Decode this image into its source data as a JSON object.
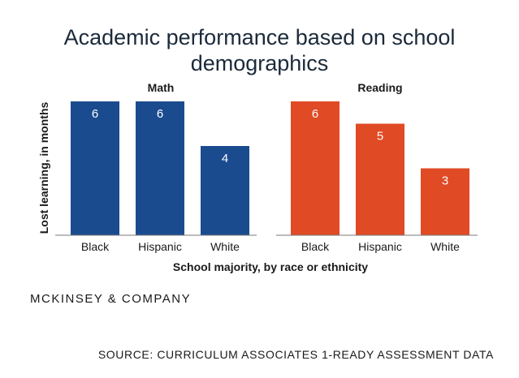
{
  "title_lines": [
    "Academic performance based on school",
    "demographics"
  ],
  "chart_data": {
    "type": "bar",
    "title": "Academic performance based on school demographics",
    "ylabel": "Lost learning, in months",
    "xlabel": "School majority, by race or ethnicity",
    "ylim": [
      0,
      6
    ],
    "panels": [
      {
        "name": "Math",
        "color": "#1b4b8f",
        "categories": [
          "Black",
          "Hispanic",
          "White"
        ],
        "values": [
          6,
          6,
          4
        ]
      },
      {
        "name": "Reading",
        "color": "#e04a25",
        "categories": [
          "Black",
          "Hispanic",
          "White"
        ],
        "values": [
          6,
          5,
          3
        ]
      }
    ]
  },
  "credit": "MCKINSEY & COMPANY",
  "source": "SOURCE: CURRICULUM ASSOCIATES 1-READY ASSESSMENT DATA"
}
